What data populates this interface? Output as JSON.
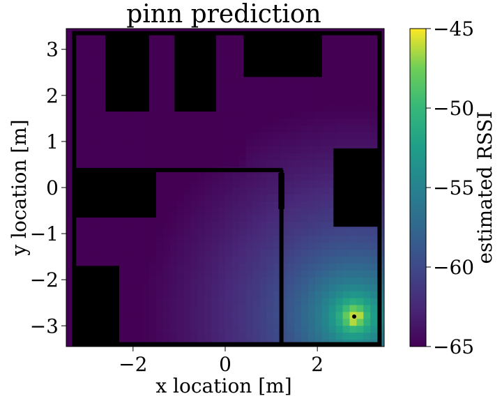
{
  "chart_data": {
    "type": "heatmap",
    "title": "pinn prediction",
    "xlabel": "x location [m]",
    "ylabel": "y location [m]",
    "xlim": [
      -3.45,
      3.45
    ],
    "ylim": [
      -3.45,
      3.45
    ],
    "xticks": [
      -2,
      0,
      2
    ],
    "xtick_labels": [
      "−2",
      "0",
      "2"
    ],
    "yticks": [
      3,
      2,
      1,
      0,
      -1,
      -2,
      -3
    ],
    "ytick_labels": [
      "3",
      "2",
      "1",
      "0",
      "−1",
      "−2",
      "−3"
    ],
    "grid": false,
    "colormap": "viridis",
    "colorbar": {
      "label": "estimated RSSI",
      "range": [
        -65,
        -45
      ],
      "ticks": [
        -45,
        -50,
        -55,
        -60,
        -65
      ],
      "tick_labels": [
        "−45",
        "−50",
        "−55",
        "−60",
        "−65"
      ]
    },
    "source": {
      "x": 2.8,
      "y": -2.8
    },
    "rssi_range_in_open_space": [
      -65,
      -45
    ],
    "obstacles": [
      {
        "name": "top-block-1",
        "x0": -2.6,
        "x1": -1.65,
        "y0": 1.65,
        "y1": 3.35
      },
      {
        "name": "top-block-2",
        "x0": -1.1,
        "x1": -0.2,
        "y0": 1.65,
        "y1": 3.35
      },
      {
        "name": "top-block-3",
        "x0": 0.4,
        "x1": 2.1,
        "y0": 2.4,
        "y1": 3.35
      },
      {
        "name": "left-block",
        "x0": -3.3,
        "x1": -1.5,
        "y0": -0.65,
        "y1": 0.4
      },
      {
        "name": "right-block",
        "x0": 2.35,
        "x1": 3.35,
        "y0": -0.85,
        "y1": 0.85
      },
      {
        "name": "bottom-left-block",
        "x0": -3.3,
        "x1": -2.3,
        "y0": -3.45,
        "y1": -1.7
      }
    ],
    "walls": [
      {
        "name": "outer-wall",
        "type": "rect",
        "x0": -3.28,
        "x1": 3.35,
        "y0": -3.4,
        "y1": 3.35
      },
      {
        "name": "inner-wall-top",
        "type": "line",
        "x0": -3.3,
        "y0": 0.38,
        "x1": 1.25,
        "y1": 0.38
      },
      {
        "name": "inner-wall-right",
        "type": "line",
        "x0": 1.22,
        "y0": 0.38,
        "x1": 1.22,
        "y1": -3.4
      },
      {
        "name": "door-frame",
        "type": "rect",
        "x0": 1.17,
        "x1": 1.27,
        "y0": -0.45,
        "y1": 0.3
      }
    ]
  }
}
